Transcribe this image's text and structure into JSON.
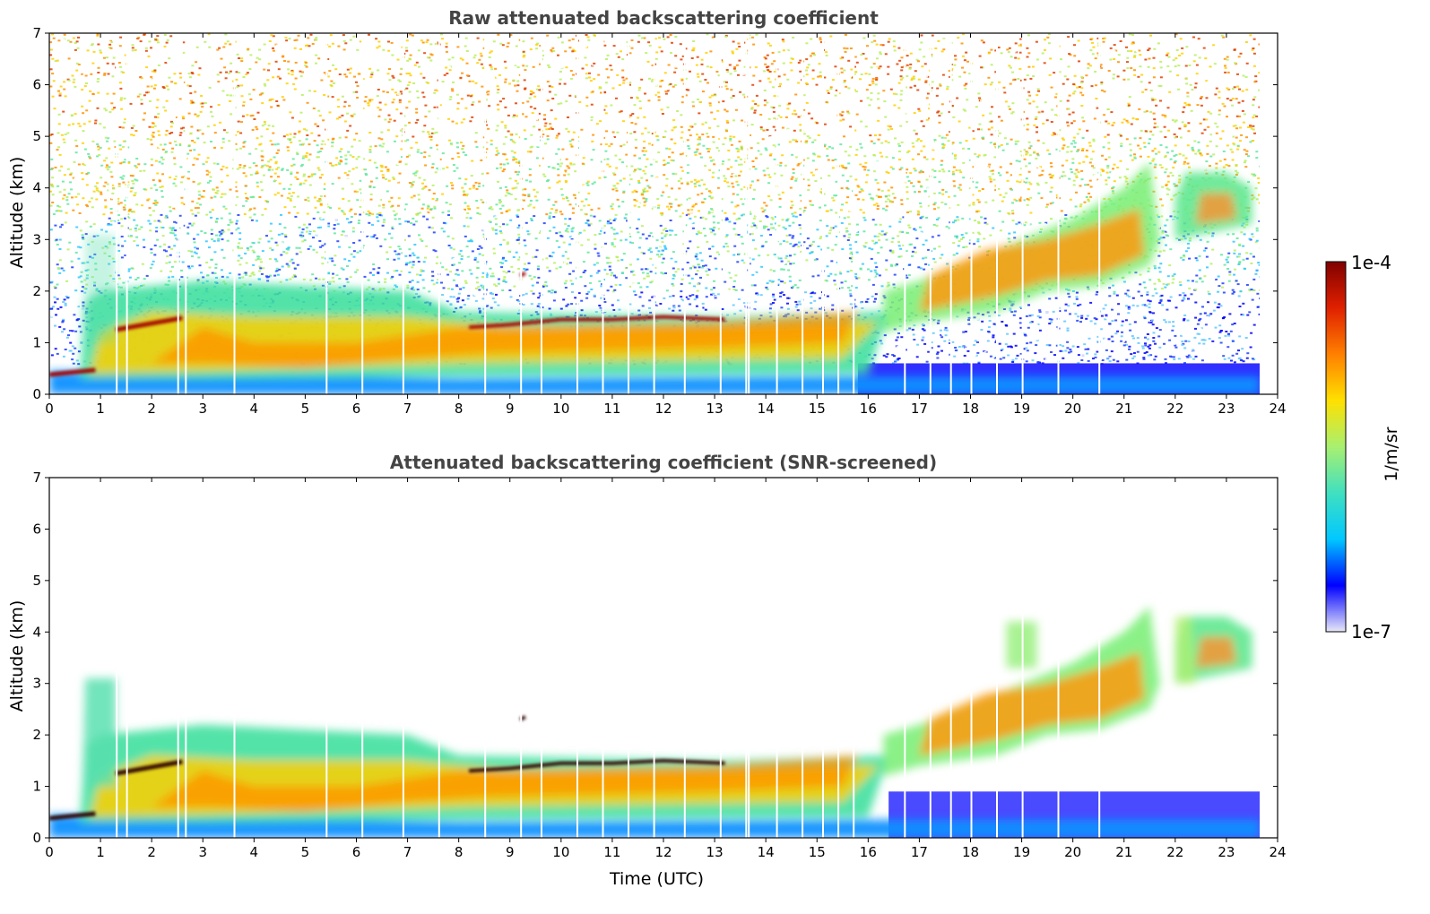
{
  "chart_data": [
    {
      "type": "heatmap",
      "title": "Raw attenuated backscattering coefficient",
      "xlabel": "",
      "ylabel": "Altitude (km)",
      "xlim": [
        0,
        24
      ],
      "ylim": [
        0,
        7
      ],
      "xticks": [
        "0",
        "1",
        "2",
        "3",
        "4",
        "5",
        "6",
        "7",
        "8",
        "9",
        "10",
        "11",
        "12",
        "13",
        "14",
        "15",
        "16",
        "17",
        "18",
        "19",
        "20",
        "21",
        "22",
        "23",
        "24"
      ],
      "yticks": [
        "0",
        "1",
        "2",
        "3",
        "4",
        "5",
        "6",
        "7"
      ],
      "data_end_time": 23.65,
      "features": [
        {
          "name": "boundary layer aerosol",
          "time": [
            0,
            23.65
          ],
          "altitude": [
            0.0,
            1.5
          ]
        },
        {
          "name": "low cloud layer (early)",
          "time": [
            0.0,
            0.9
          ],
          "altitude": [
            0.3,
            0.5
          ]
        },
        {
          "name": "rising cloud layer",
          "time": [
            1.2,
            2.7
          ],
          "altitude": [
            1.2,
            1.5
          ]
        },
        {
          "name": "cloud layer",
          "time": [
            8.0,
            13.5
          ],
          "altitude": [
            1.2,
            1.6
          ]
        },
        {
          "name": "elevated aerosol layer",
          "time": [
            16.5,
            21.7
          ],
          "altitude": [
            1.5,
            4.5
          ]
        },
        {
          "name": "high aerosol patch",
          "time": [
            22.0,
            23.5
          ],
          "altitude": [
            3.0,
            4.2
          ]
        }
      ]
    },
    {
      "type": "heatmap",
      "title": "Attenuated backscattering coefficient (SNR-screened)",
      "xlabel": "Time (UTC)",
      "ylabel": "Altitude (km)",
      "xlim": [
        0,
        24
      ],
      "ylim": [
        0,
        7
      ],
      "xticks": [
        "0",
        "1",
        "2",
        "3",
        "4",
        "5",
        "6",
        "7",
        "8",
        "9",
        "10",
        "11",
        "12",
        "13",
        "14",
        "15",
        "16",
        "17",
        "18",
        "19",
        "20",
        "21",
        "22",
        "23",
        "24"
      ],
      "yticks": [
        "0",
        "1",
        "2",
        "3",
        "4",
        "5",
        "6",
        "7"
      ],
      "data_end_time": 23.65,
      "features": [
        {
          "name": "boundary layer aerosol",
          "time": [
            0,
            16.5
          ],
          "altitude": [
            0.0,
            2.3
          ]
        },
        {
          "name": "cloud layer",
          "time": [
            8.0,
            13.5
          ],
          "altitude": [
            1.2,
            1.6
          ]
        },
        {
          "name": "elevated aerosol layer",
          "time": [
            16.5,
            21.7
          ],
          "altitude": [
            1.3,
            4.5
          ]
        },
        {
          "name": "high aerosol patch",
          "time": [
            22.0,
            23.5
          ],
          "altitude": [
            3.0,
            4.2
          ]
        }
      ]
    }
  ],
  "colorbar": {
    "max_label": "1e-4",
    "min_label": "1e-7",
    "unit": "1/m/sr",
    "colors": [
      "#e8e8f8",
      "#0000ff",
      "#00c8ff",
      "#40e0c0",
      "#a8f070",
      "#ffe000",
      "#ff8000",
      "#e02000",
      "#800000"
    ]
  }
}
